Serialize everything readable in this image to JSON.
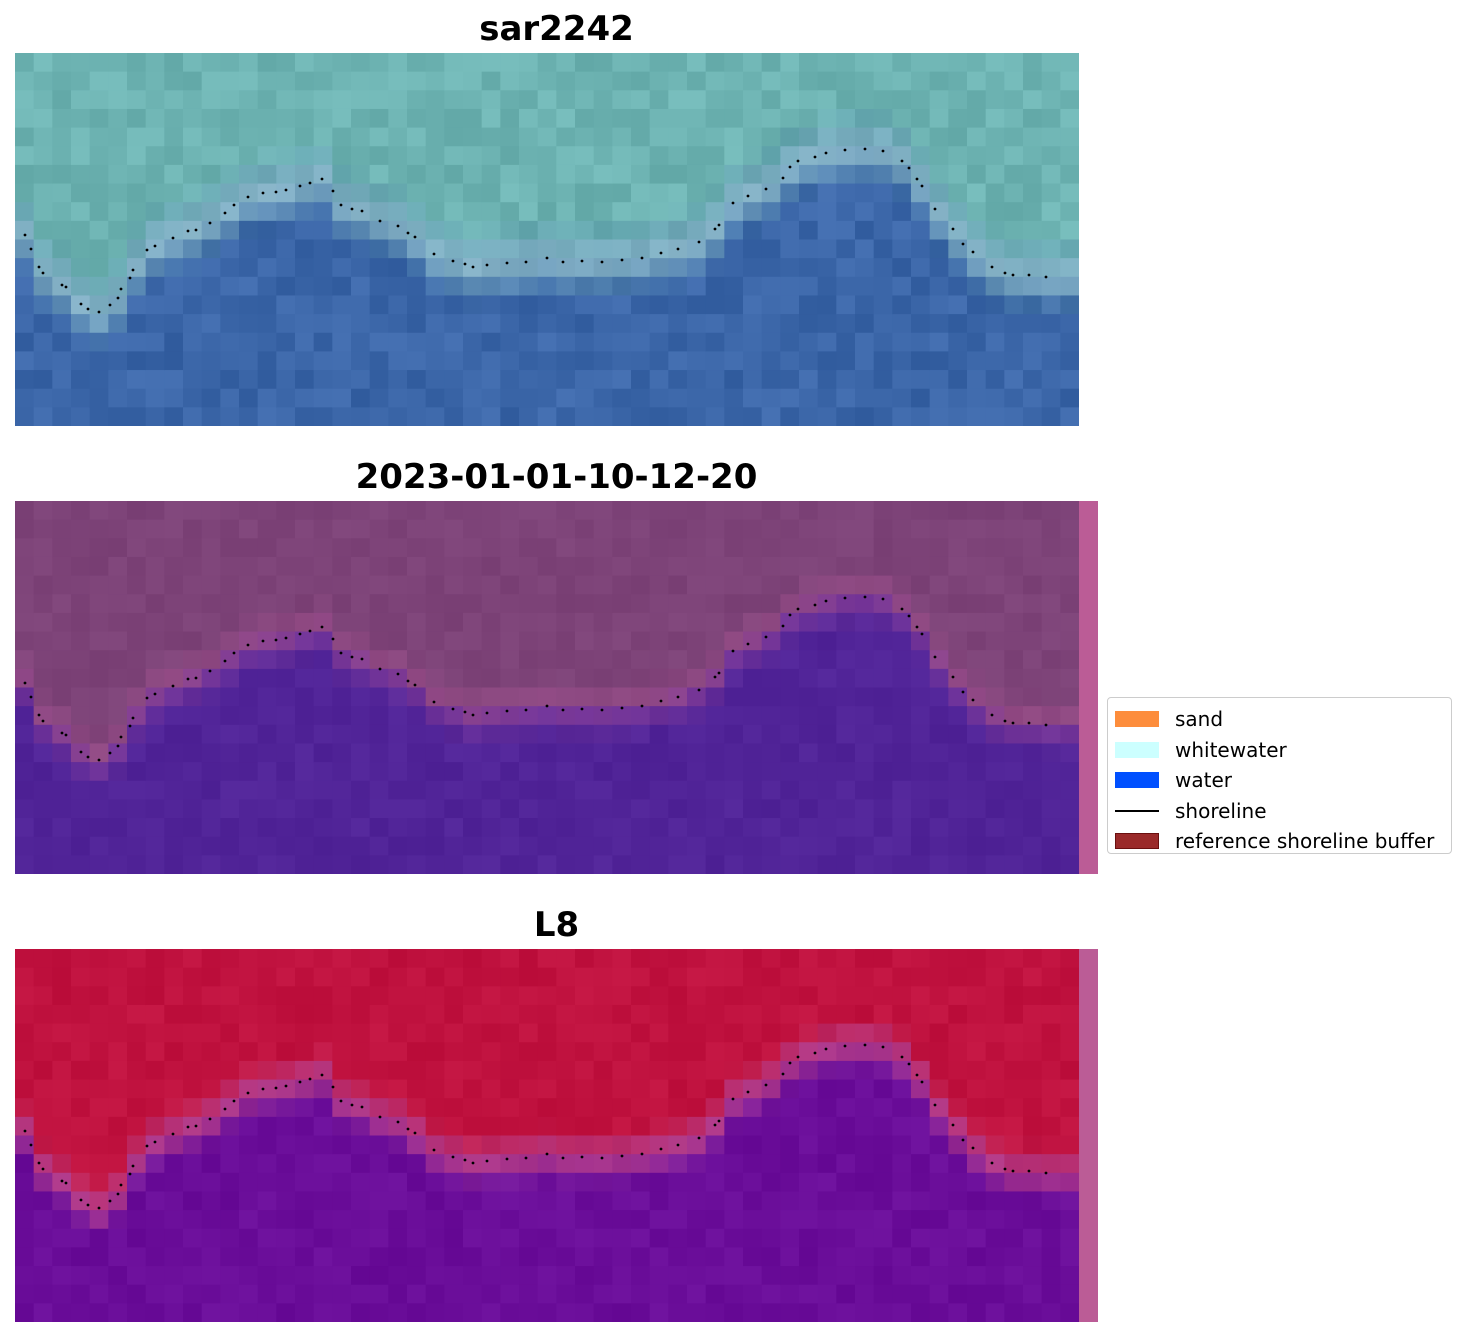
{
  "panels": [
    {
      "title": "sar2242"
    },
    {
      "title": "2023-01-01-10-12-20"
    },
    {
      "title": "L8"
    }
  ],
  "legend": {
    "items": [
      {
        "label": "sand",
        "color": "#fd8d3c",
        "kind": "patch"
      },
      {
        "label": "whitewater",
        "color": "#ccffff",
        "kind": "patch"
      },
      {
        "label": "water",
        "color": "#0050ff",
        "kind": "patch"
      },
      {
        "label": "shoreline",
        "color": "#000000",
        "kind": "line"
      },
      {
        "label": "reference shoreline buffer",
        "color": "#9a2a2a",
        "kind": "patch",
        "edge": "#6a1010"
      }
    ]
  },
  "colors": {
    "rgb_land": "#6db3b2",
    "rgb_water": "#3b66a8",
    "class_land": "#7d4378",
    "class_water": "#512498",
    "ndwi_land": "#c0123f",
    "ndwi_water": "#6a0d99",
    "buffer_strip": "#bb5c96"
  }
}
